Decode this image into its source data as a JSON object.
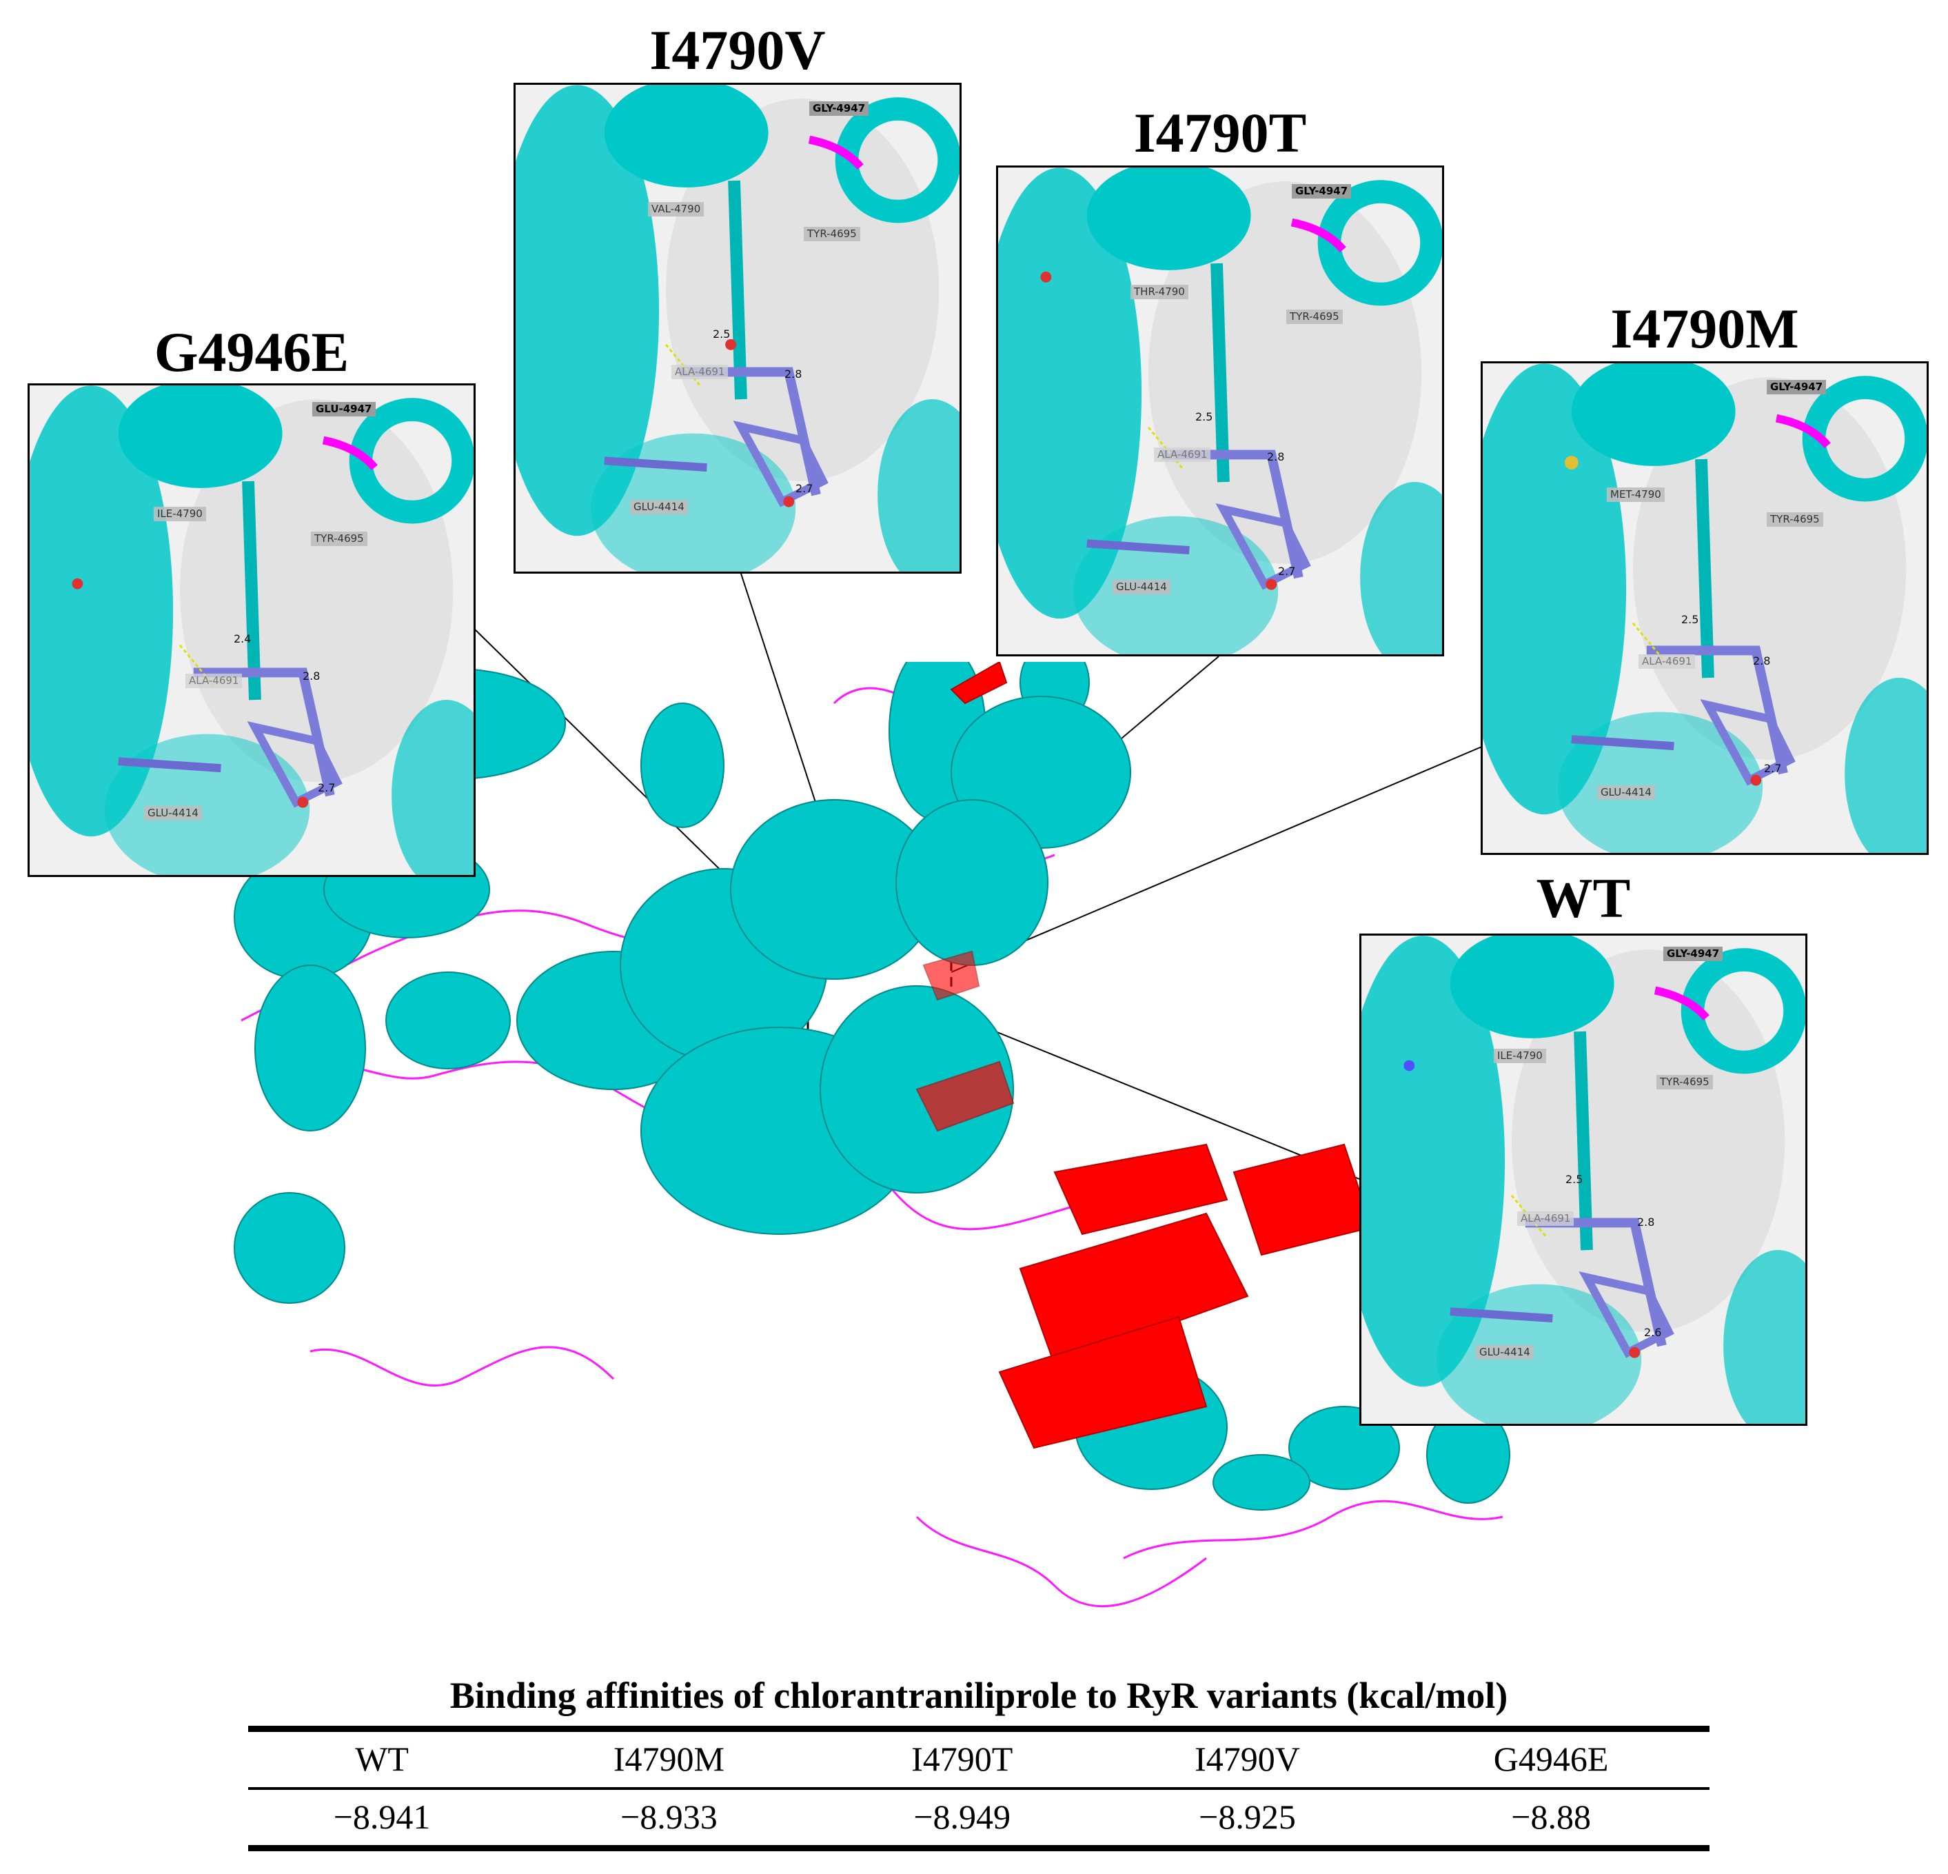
{
  "panels": {
    "g4946e": {
      "title": "G4946E",
      "labels": {
        "top": "GLU-4947",
        "res4790": "ILE-4790",
        "tyr": "TYR-4695",
        "ala": "ALA-4691",
        "glu": "GLU-4414"
      },
      "distances": {
        "d1": "2.4",
        "d2": "2.8",
        "d3": "2.7"
      }
    },
    "i4790v": {
      "title": "I4790V",
      "labels": {
        "top": "GLY-4947",
        "res4790": "VAL-4790",
        "tyr": "TYR-4695",
        "ala": "ALA-4691",
        "glu": "GLU-4414"
      },
      "distances": {
        "d1": "2.5",
        "d2": "2.8",
        "d3": "2.7"
      }
    },
    "i4790t": {
      "title": "I4790T",
      "labels": {
        "top": "GLY-4947",
        "res4790": "THR-4790",
        "tyr": "TYR-4695",
        "ala": "ALA-4691",
        "glu": "GLU-4414"
      },
      "distances": {
        "d1": "2.5",
        "d2": "2.8",
        "d3": "2.7"
      }
    },
    "i4790m": {
      "title": "I4790M",
      "labels": {
        "top": "GLY-4947",
        "res4790": "MET-4790",
        "tyr": "TYR-4695",
        "ala": "ALA-4691",
        "glu": "GLU-4414"
      },
      "distances": {
        "d1": "2.5",
        "d2": "2.8",
        "d3": "2.7"
      }
    },
    "wt": {
      "title": "WT",
      "labels": {
        "top": "GLY-4947",
        "res4790": "ILE-4790",
        "tyr": "TYR-4695",
        "ala": "ALA-4691",
        "glu": "GLU-4414"
      },
      "distances": {
        "d1": "2.5",
        "d2": "2.8",
        "d3": "2.6"
      }
    }
  },
  "colors": {
    "helix": "#00cccc",
    "loop": "#ff00ff",
    "sheet": "#ff0000",
    "ligand": "#7b7bd9",
    "surface": "#e6e6e6"
  },
  "table": {
    "title": "Binding affinities of chlorantraniliprole to RyR variants (kcal/mol)",
    "headers": [
      "WT",
      "I4790M",
      "I4790T",
      "I4790V",
      "G4946E"
    ],
    "values": [
      "−8.941",
      "−8.933",
      "−8.949",
      "−8.925",
      "−8.88"
    ]
  }
}
